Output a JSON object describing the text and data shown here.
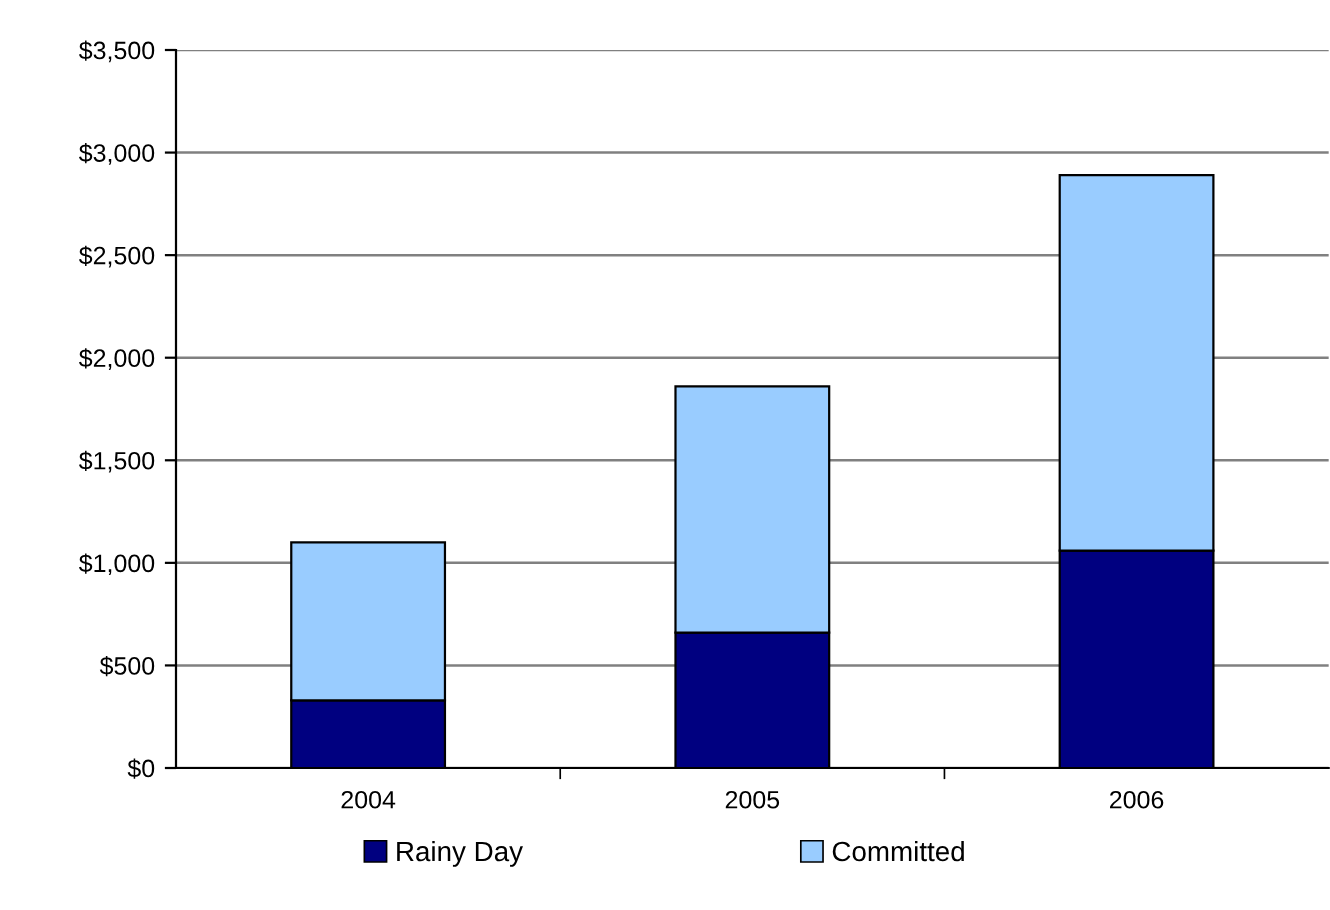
{
  "chart_data": {
    "type": "bar",
    "stacked": true,
    "categories": [
      "2004",
      "2005",
      "2006"
    ],
    "series": [
      {
        "name": "Rainy Day",
        "color": "#000080",
        "values": [
          330,
          660,
          1060
        ]
      },
      {
        "name": "Committed",
        "color": "#99ccff",
        "values": [
          770,
          1200,
          1830
        ]
      }
    ],
    "ylim": [
      0,
      3500
    ],
    "yticks": [
      {
        "value": 0,
        "label": "$0"
      },
      {
        "value": 500,
        "label": "$500"
      },
      {
        "value": 1000,
        "label": "$1,000"
      },
      {
        "value": 1500,
        "label": "$1,500"
      },
      {
        "value": 2000,
        "label": "$2,000"
      },
      {
        "value": 2500,
        "label": "$2,500"
      },
      {
        "value": 3000,
        "label": "$3,000"
      },
      {
        "value": 3500,
        "label": "$3,500"
      }
    ],
    "grid": "y",
    "legend": "bottom"
  }
}
